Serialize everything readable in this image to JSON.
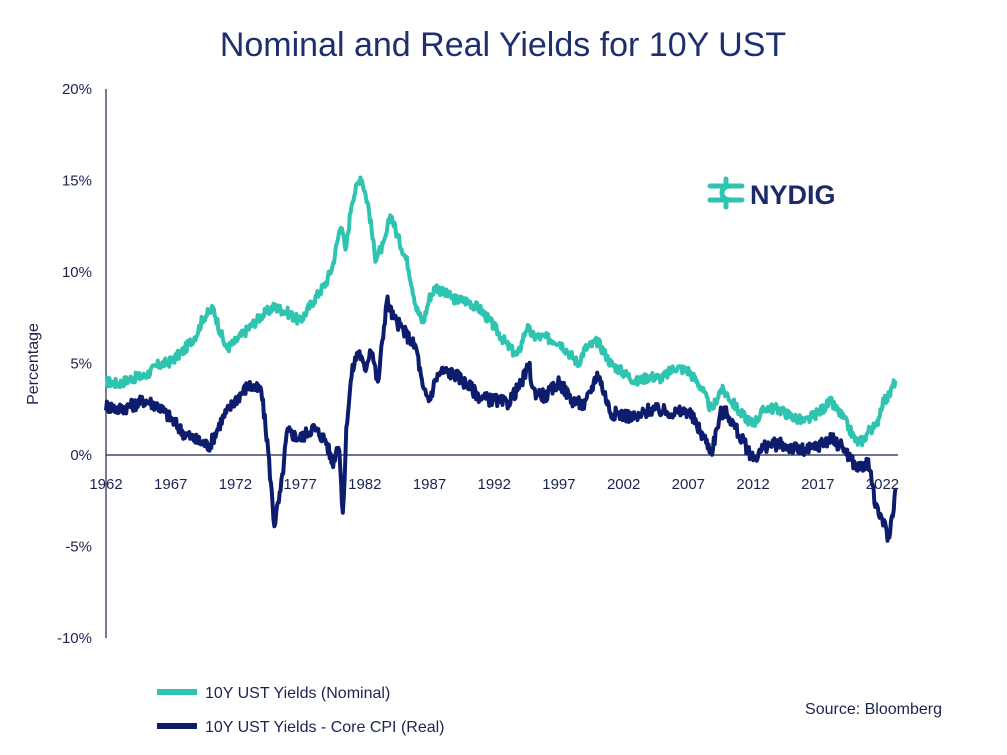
{
  "chart_data": {
    "type": "line",
    "title": "Nominal and Real Yields for 10Y UST",
    "ylabel": "Percentage",
    "xlabel": "",
    "ylim": [
      -10,
      20
    ],
    "xlim": [
      1962,
      2023.2
    ],
    "y_ticks": [
      20,
      15,
      10,
      5,
      0,
      -5,
      -10
    ],
    "y_tick_labels": [
      "20%",
      "15%",
      "10%",
      "5%",
      "0%",
      "-5%",
      "-10%"
    ],
    "x_ticks": [
      1962,
      1967,
      1972,
      1977,
      1982,
      1987,
      1992,
      1997,
      2002,
      2007,
      2012,
      2017,
      2022
    ],
    "x_tick_labels": [
      "1962",
      "1967",
      "1972",
      "1977",
      "1982",
      "1987",
      "1992",
      "1997",
      "2002",
      "2007",
      "2012",
      "2017",
      "2022"
    ],
    "series": [
      {
        "name": "10Y UST Yields (Nominal)",
        "color": "#2ec4b0",
        "x": [
          1962,
          1963,
          1964,
          1965,
          1966,
          1967,
          1968,
          1969,
          1969.5,
          1970.3,
          1970.8,
          1971.3,
          1972,
          1973,
          1974,
          1975,
          1976,
          1977,
          1978,
          1979,
          1979.5,
          1980.2,
          1980.5,
          1981,
          1981.7,
          1982.3,
          1982.8,
          1983.5,
          1984,
          1984.5,
          1985.3,
          1986,
          1986.5,
          1987,
          1987.5,
          1988,
          1989,
          1990,
          1991,
          1992,
          1993,
          1993.8,
          1994.5,
          1995,
          1996,
          1997,
          1998.5,
          1999,
          2000,
          2001,
          2002,
          2003,
          2004,
          2005,
          2006,
          2007,
          2008,
          2008.8,
          2009.5,
          2010,
          2011,
          2012,
          2013,
          2014,
          2015,
          2016,
          2017,
          2018,
          2019,
          2020,
          2020.5,
          2021,
          2021.5,
          2022,
          2022.5,
          2023
        ],
        "values": [
          4.0,
          3.9,
          4.2,
          4.3,
          4.9,
          5.1,
          5.7,
          6.6,
          7.5,
          8.0,
          6.8,
          5.8,
          6.2,
          6.9,
          7.6,
          8.1,
          7.8,
          7.3,
          8.4,
          9.4,
          10.3,
          12.8,
          11.0,
          13.9,
          15.3,
          13.5,
          10.8,
          11.5,
          13.2,
          12.0,
          10.5,
          8.0,
          7.2,
          8.6,
          9.2,
          8.9,
          8.5,
          8.4,
          7.9,
          7.0,
          6.0,
          5.4,
          7.0,
          6.5,
          6.4,
          6.2,
          5.0,
          5.8,
          6.2,
          5.0,
          4.5,
          4.0,
          4.3,
          4.2,
          4.8,
          4.6,
          3.7,
          2.4,
          3.6,
          3.3,
          2.3,
          1.7,
          2.6,
          2.5,
          2.1,
          1.8,
          2.3,
          2.9,
          2.0,
          0.7,
          0.8,
          1.4,
          1.5,
          2.9,
          3.2,
          4.1
        ]
      },
      {
        "name": "10Y UST Yields - Core CPI (Real)",
        "color": "#0e1c6e",
        "x": [
          1962,
          1963,
          1964,
          1965,
          1966,
          1967,
          1968,
          1969,
          1970,
          1971,
          1972,
          1973,
          1974,
          1974.5,
          1975,
          1975.5,
          1976,
          1977,
          1978,
          1979,
          1979.5,
          1980,
          1980.3,
          1980.6,
          1981,
          1981.5,
          1982,
          1982.5,
          1983,
          1983.7,
          1984.2,
          1985,
          1986,
          1986.5,
          1987,
          1987.5,
          1988,
          1989,
          1990,
          1991,
          1992,
          1993,
          1994,
          1994.7,
          1995,
          1996,
          1997,
          1998,
          1999,
          2000,
          2001,
          2002,
          2003,
          2004,
          2005,
          2006,
          2007,
          2008,
          2008.8,
          2009.5,
          2010,
          2011,
          2012,
          2013,
          2014,
          2015,
          2016,
          2017,
          2018,
          2019,
          2020,
          2020.5,
          2021,
          2021.5,
          2022,
          2022.5,
          2023
        ],
        "values": [
          2.7,
          2.5,
          2.7,
          3.0,
          2.7,
          2.0,
          1.2,
          0.8,
          0.5,
          2.0,
          3.0,
          3.8,
          3.5,
          0.5,
          -3.8,
          -2.0,
          1.3,
          0.9,
          1.5,
          0.8,
          -0.5,
          0.8,
          -3.5,
          1.8,
          4.5,
          5.8,
          4.6,
          6.0,
          3.8,
          8.5,
          7.5,
          6.8,
          5.8,
          3.5,
          3.0,
          4.2,
          4.6,
          4.4,
          3.8,
          3.1,
          3.0,
          2.8,
          3.8,
          4.9,
          3.5,
          3.2,
          4.0,
          3.0,
          2.7,
          4.5,
          2.3,
          2.2,
          2.0,
          2.5,
          2.4,
          2.3,
          2.4,
          1.2,
          0.2,
          2.3,
          2.3,
          1.0,
          -0.2,
          0.5,
          0.6,
          0.4,
          0.2,
          0.5,
          0.9,
          0.4,
          -0.7,
          -0.6,
          -0.5,
          -3.0,
          -3.5,
          -4.6,
          -2.0
        ]
      }
    ]
  },
  "legend": {
    "items": [
      {
        "label": "10Y UST Yields (Nominal)",
        "color": "#2ec4b0"
      },
      {
        "label": "10Y UST Yields - Core CPI (Real)",
        "color": "#0e1c6e"
      }
    ]
  },
  "source": "Source: Bloomberg",
  "logo": {
    "text": "NYDIG",
    "icon": "nydig-dollar-icon",
    "icon_color": "#2ec4b0"
  }
}
